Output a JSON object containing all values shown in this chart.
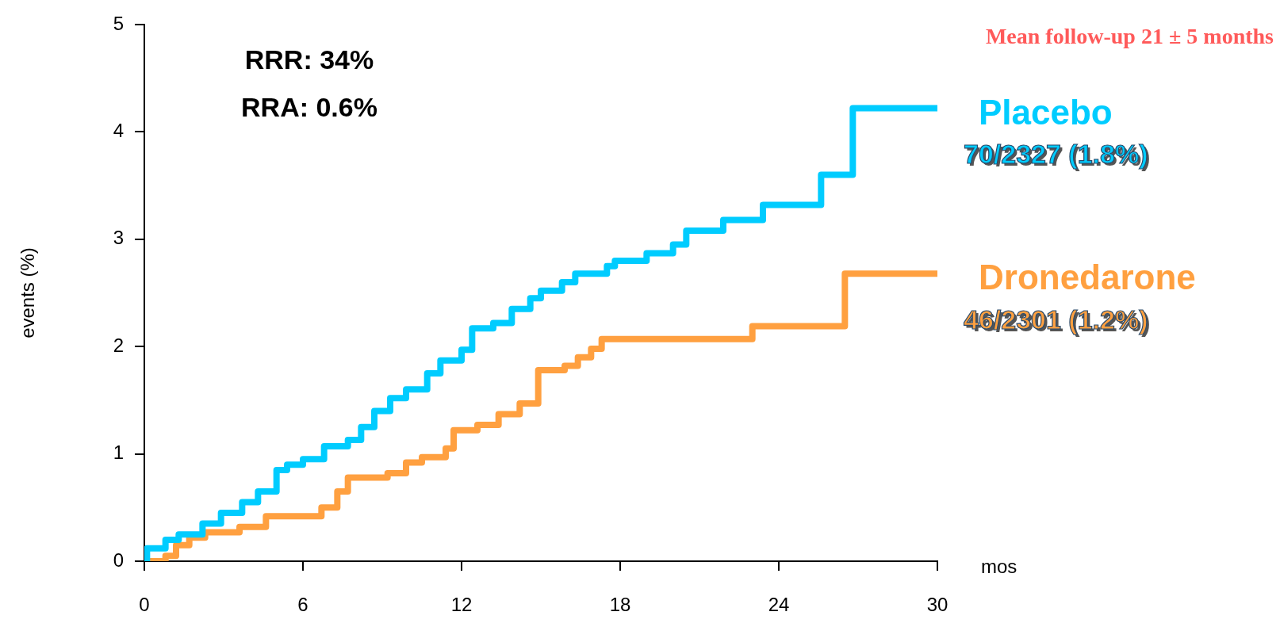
{
  "chart_data": {
    "type": "step",
    "xlabel": "mos",
    "ylabel": "events (%)",
    "xlim": [
      0,
      30
    ],
    "xticks": [
      0,
      6,
      12,
      18,
      24,
      30
    ],
    "ylim": [
      0,
      5
    ],
    "yticks": [
      0,
      1,
      2,
      3,
      4,
      5
    ],
    "grid": false,
    "legend": false,
    "marker": "none",
    "line_style": "solid",
    "annotations": [
      "RRR: 34%",
      "RRA: 0.6%",
      "70/2327 (1.8%)",
      "46/2301 (1.2%)",
      "Mean follow-up 21 ± 5 months"
    ],
    "series": [
      {
        "name": "Placebo",
        "color": "#00ccff",
        "x": [
          0,
          0.1,
          0.8,
          1.3,
          2.2,
          2.9,
          3.7,
          4.3,
          5,
          5.4,
          6,
          6.8,
          7.7,
          8.2,
          8.7,
          9.3,
          9.9,
          10.7,
          11.2,
          12,
          12.4,
          13.2,
          13.9,
          14.6,
          15,
          15.8,
          16.3,
          17.5,
          17.8,
          19,
          20,
          20.5,
          21.9,
          23.4,
          25.6,
          26.8,
          30
        ],
        "values": [
          0,
          0.12,
          0.2,
          0.25,
          0.35,
          0.45,
          0.55,
          0.65,
          0.85,
          0.9,
          0.95,
          1.07,
          1.13,
          1.25,
          1.4,
          1.52,
          1.6,
          1.75,
          1.87,
          1.97,
          2.17,
          2.22,
          2.35,
          2.45,
          2.52,
          2.6,
          2.68,
          2.75,
          2.8,
          2.87,
          2.95,
          3.08,
          3.18,
          3.32,
          3.6,
          4.22,
          4.22
        ]
      },
      {
        "name": "Dronedarone",
        "color": "#ffa040",
        "x": [
          0,
          0.8,
          1.2,
          1.7,
          2.3,
          3.6,
          4.6,
          6.7,
          7.3,
          7.7,
          9.2,
          9.9,
          10.5,
          11.4,
          11.7,
          12.6,
          13.4,
          14.2,
          14.9,
          15.9,
          16.4,
          16.9,
          17.3,
          23,
          26.5,
          30
        ],
        "values": [
          0,
          0.05,
          0.15,
          0.22,
          0.27,
          0.32,
          0.42,
          0.5,
          0.65,
          0.78,
          0.82,
          0.92,
          0.97,
          1.05,
          1.22,
          1.27,
          1.37,
          1.47,
          1.78,
          1.82,
          1.9,
          1.98,
          2.07,
          2.19,
          2.68,
          2.68
        ]
      }
    ]
  }
}
